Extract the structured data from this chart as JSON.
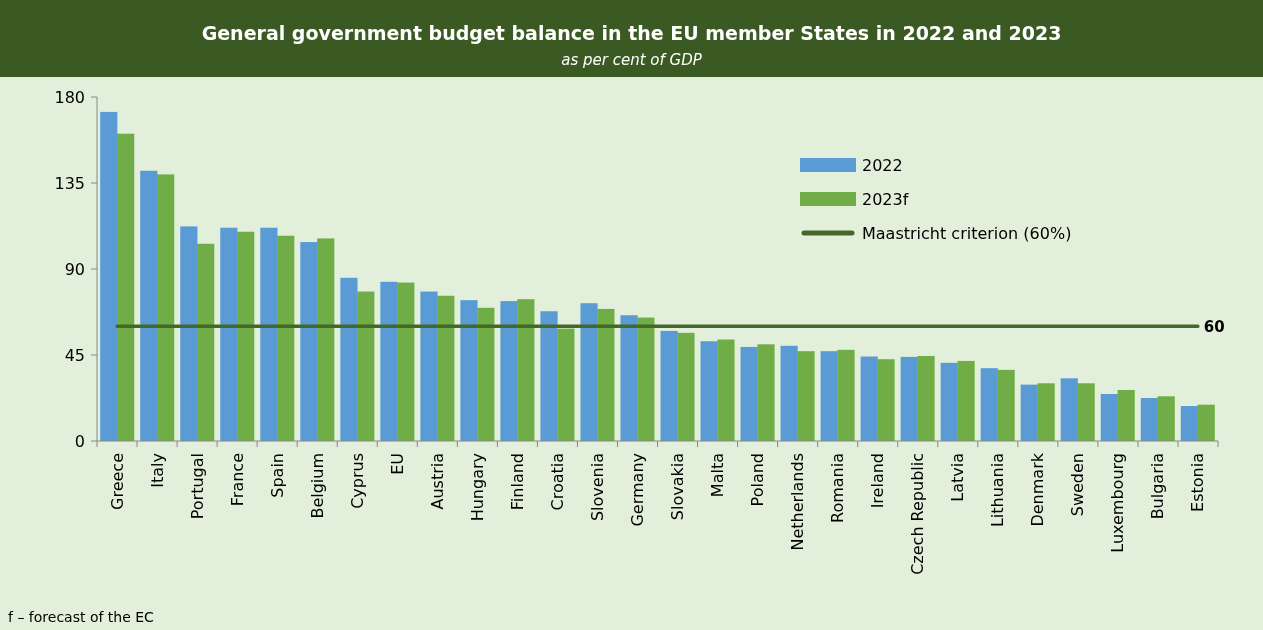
{
  "chart_data": {
    "type": "bar",
    "title": "General government budget balance in the EU member States in 2022 and 2023",
    "subtitle": "as per cent of GDP",
    "categories": [
      "Greece",
      "Italy",
      "Portugal",
      "France",
      "Spain",
      "Belgium",
      "Cyprus",
      "EU",
      "Austria",
      "Hungary",
      "Finland",
      "Croatia",
      "Slovenia",
      "Germany",
      "Slovakia",
      "Malta",
      "Poland",
      "Netherlands",
      "Romania",
      "Ireland",
      "Czech Republic",
      "Latvia",
      "Lithuania",
      "Denmark",
      "Sweden",
      "Luxembourg",
      "Bulgaria",
      "Estonia"
    ],
    "series": [
      {
        "name": "2022",
        "color": "#5b9bd5",
        "values": [
          172.2,
          141.4,
          112.3,
          111.6,
          111.6,
          104.1,
          85.4,
          83.3,
          78.2,
          73.7,
          73.2,
          67.9,
          72.1,
          65.8,
          57.6,
          52.2,
          49.2,
          49.8,
          47.0,
          44.2,
          44.0,
          40.9,
          38.1,
          29.5,
          32.8,
          24.6,
          22.5,
          18.3
        ]
      },
      {
        "name": "2023f",
        "color": "#70ad47",
        "values": [
          160.8,
          139.5,
          103.2,
          109.5,
          107.4,
          106.0,
          78.2,
          82.9,
          76.0,
          69.7,
          74.2,
          58.8,
          69.1,
          64.6,
          56.6,
          53.1,
          50.6,
          47.0,
          47.7,
          42.8,
          44.5,
          41.9,
          37.2,
          30.2,
          30.2,
          26.7,
          23.4,
          19.0
        ]
      },
      {
        "name": "Maastricht criterion (60%)",
        "type": "line",
        "color": "#43682a",
        "values": [
          60,
          60,
          60,
          60,
          60,
          60,
          60,
          60,
          60,
          60,
          60,
          60,
          60,
          60,
          60,
          60,
          60,
          60,
          60,
          60,
          60,
          60,
          60,
          60,
          60,
          60,
          60,
          60
        ],
        "value_labels": [
          null,
          null,
          null,
          null,
          null,
          null,
          null,
          null,
          null,
          null,
          null,
          null,
          null,
          null,
          null,
          null,
          null,
          null,
          null,
          null,
          null,
          null,
          null,
          null,
          null,
          null,
          null,
          "60"
        ]
      }
    ],
    "ylim": [
      0,
      180
    ],
    "yticks": [
      0,
      45,
      90,
      135,
      180
    ],
    "grid": false,
    "legend": "top right",
    "marker": "none",
    "annotations": [
      "f – forecast of the EC"
    ]
  }
}
